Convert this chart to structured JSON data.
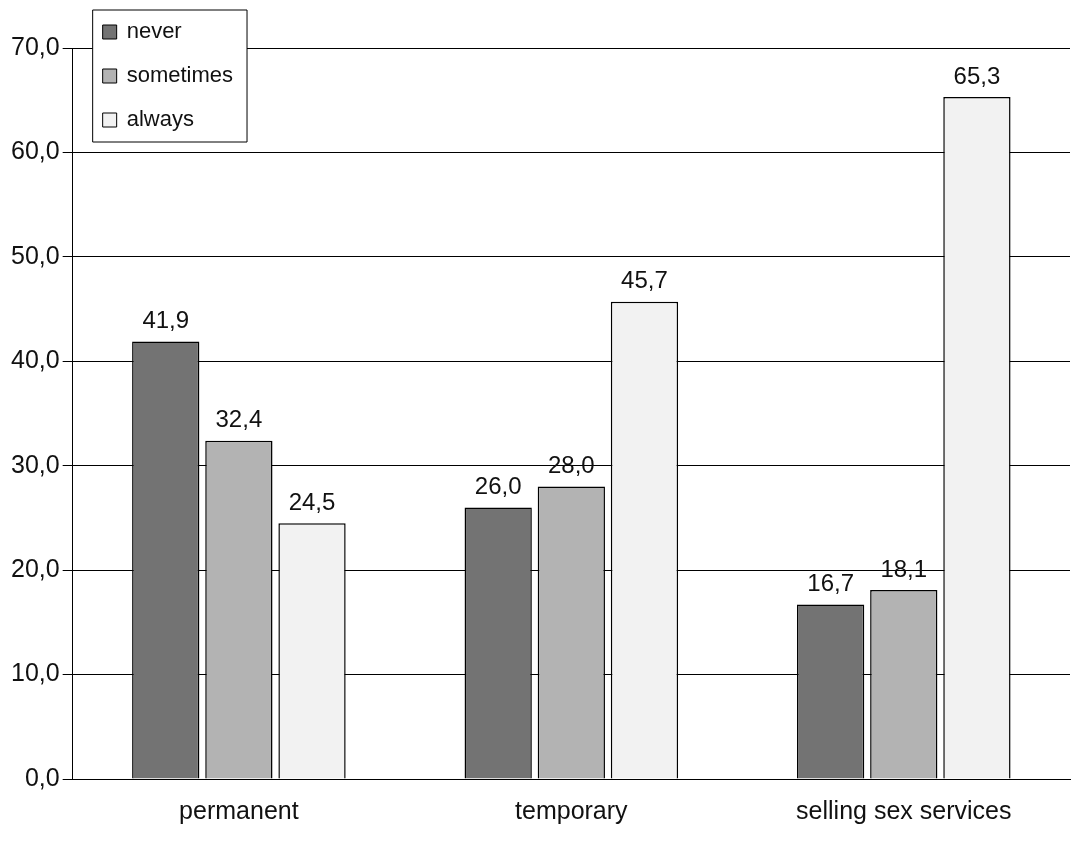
{
  "chart_data": {
    "type": "bar",
    "categories": [
      "permanent",
      "temporary",
      "selling sex services"
    ],
    "series": [
      {
        "name": "never",
        "color": "#737373",
        "values": [
          41.9,
          26.0,
          16.7
        ],
        "value_labels": [
          "41,9",
          "26,0",
          "16,7"
        ]
      },
      {
        "name": "sometimes",
        "color": "#b3b3b3",
        "values": [
          32.4,
          28.0,
          18.1
        ],
        "value_labels": [
          "32,4",
          "28,0",
          "18,1"
        ]
      },
      {
        "name": "always",
        "color": "#f2f2f2",
        "values": [
          24.5,
          45.7,
          65.3
        ],
        "value_labels": [
          "24,5",
          "45,7",
          "65,3"
        ]
      }
    ],
    "ylim": [
      0,
      70
    ],
    "yticks": [
      {
        "value": 0,
        "label": "0,0"
      },
      {
        "value": 10,
        "label": "10,0"
      },
      {
        "value": 20,
        "label": "20,0"
      },
      {
        "value": 30,
        "label": "30,0"
      },
      {
        "value": 40,
        "label": "40,0"
      },
      {
        "value": 50,
        "label": "50,0"
      },
      {
        "value": 60,
        "label": "60,0"
      },
      {
        "value": 70,
        "label": "70,0"
      }
    ],
    "grid": "y",
    "legend": "top left"
  }
}
